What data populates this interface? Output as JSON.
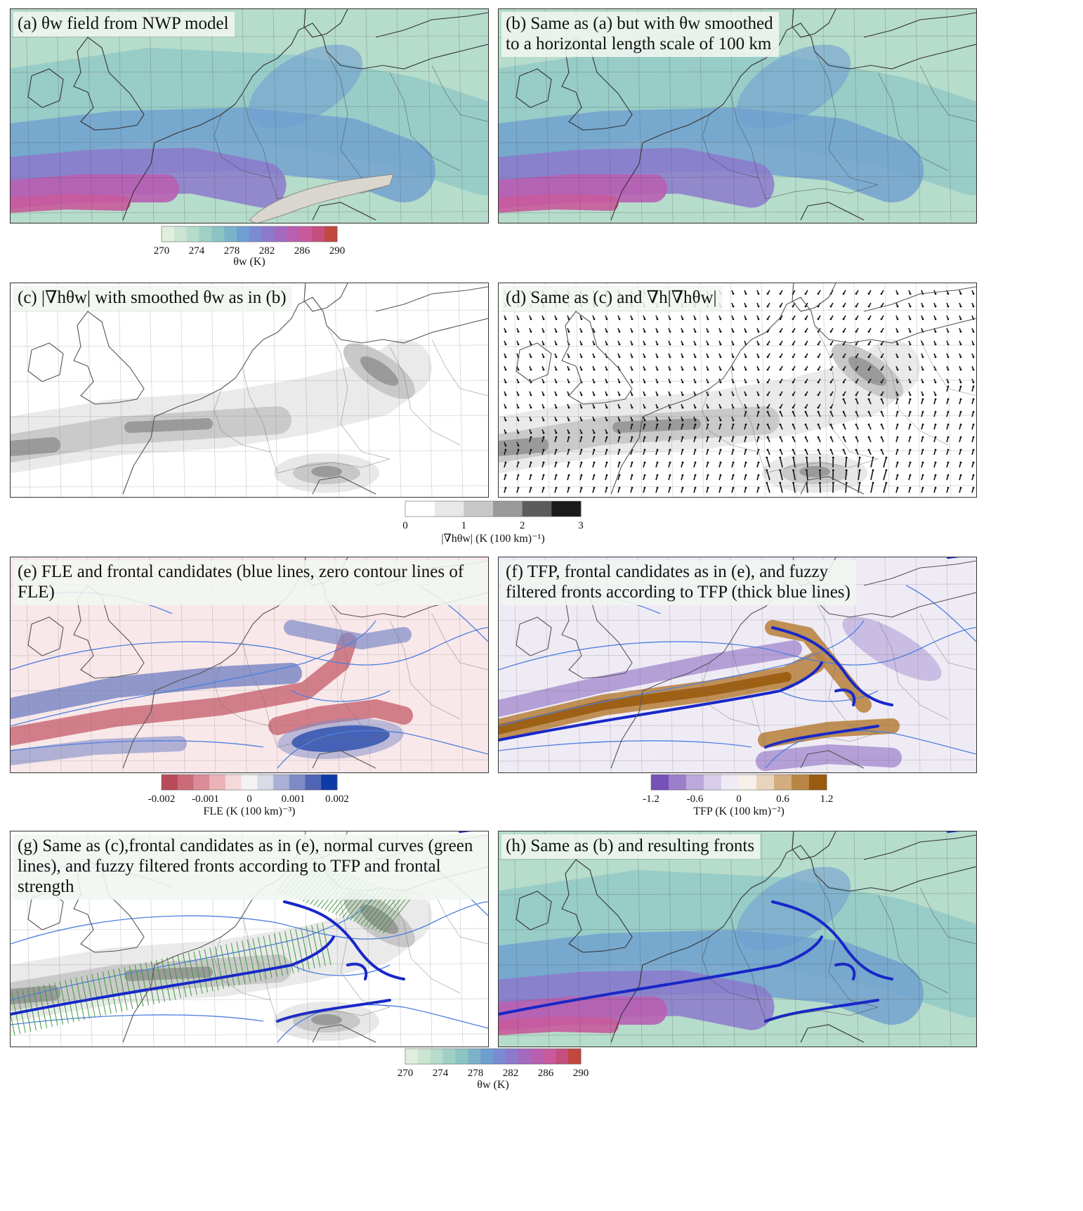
{
  "panels": [
    {
      "id": "a",
      "title": "(a) θw field from NWP model",
      "kind": "theta"
    },
    {
      "id": "b",
      "title": "(b) Same as (a) but with θw smoothed\nto a horizontal length scale of 100 km",
      "kind": "theta"
    },
    {
      "id": "c",
      "title": "(c) |∇hθw| with smoothed θw as in (b)",
      "kind": "grad"
    },
    {
      "id": "d",
      "title": "(d) Same as (c) and ∇h|∇hθw|",
      "kind": "grad"
    },
    {
      "id": "e",
      "title": "(e) FLE and frontal candidates (blue lines, zero contour lines of FLE)",
      "kind": "fle"
    },
    {
      "id": "f",
      "title": "(f) TFP, frontal candidates as in (e), and fuzzy\nfiltered fronts according to TFP (thick blue lines)",
      "kind": "tfp"
    },
    {
      "id": "g",
      "title": "(g) Same as (c),frontal candidates as in (e), normal curves (green\nlines), and fuzzy filtered fronts according to TFP and frontal strength",
      "kind": "gradfront"
    },
    {
      "id": "h",
      "title": "(h) Same as (b) and resulting fronts",
      "kind": "thetafront"
    }
  ],
  "colorbars": {
    "theta_top": {
      "ticks": [
        "270",
        "274",
        "278",
        "282",
        "286",
        "290"
      ],
      "label": "θw (K)"
    },
    "grad": {
      "ticks": [
        "0",
        "1",
        "2",
        "3"
      ],
      "label": "|∇hθw|  (K (100 km)⁻¹)"
    },
    "fle": {
      "ticks": [
        "-0.002",
        "-0.001",
        "0",
        "0.001",
        "0.002"
      ],
      "label": "FLE  (K (100 km)⁻³)"
    },
    "tfp": {
      "ticks": [
        "-1.2",
        "-0.6",
        "0",
        "0.6",
        "1.2"
      ],
      "label": "TFP  (K (100 km)⁻²)"
    },
    "theta_bottom": {
      "ticks": [
        "270",
        "274",
        "278",
        "282",
        "286",
        "290"
      ],
      "label": "θw (K)"
    }
  },
  "colors": {
    "theta_scale": [
      "#dfeedd",
      "#cce5d3",
      "#b6dccb",
      "#9fd0c4",
      "#8cc4c4",
      "#7ab3c8",
      "#6f9fd0",
      "#7a8bd4",
      "#8c79cc",
      "#a36ac0",
      "#b85fb2",
      "#c85a9c",
      "#c44f7d",
      "#c2473f"
    ],
    "grad_scale": [
      "#ffffff",
      "#e8e8e8",
      "#c8c8c8",
      "#9a9a9a",
      "#5c5c5c",
      "#1a1a1a"
    ],
    "fle_scale": [
      "#b84a5a",
      "#cb6b78",
      "#dc8c96",
      "#ebb3b8",
      "#f5d9da",
      "#f3f3f3",
      "#d9dbe9",
      "#aab1d7",
      "#7e8ac6",
      "#5064b5",
      "#0d3aa8"
    ],
    "tfp_scale": [
      "#7651b8",
      "#9b7fcb",
      "#bba9dc",
      "#d8cdec",
      "#efebf5",
      "#f6f0e8",
      "#e8d3bc",
      "#d3ac7f",
      "#b98545",
      "#9a5b0e"
    ],
    "front_blue": "#1727c9",
    "candidate_blue": "#4f7fe0",
    "normal_green": "#3f9a3a"
  }
}
